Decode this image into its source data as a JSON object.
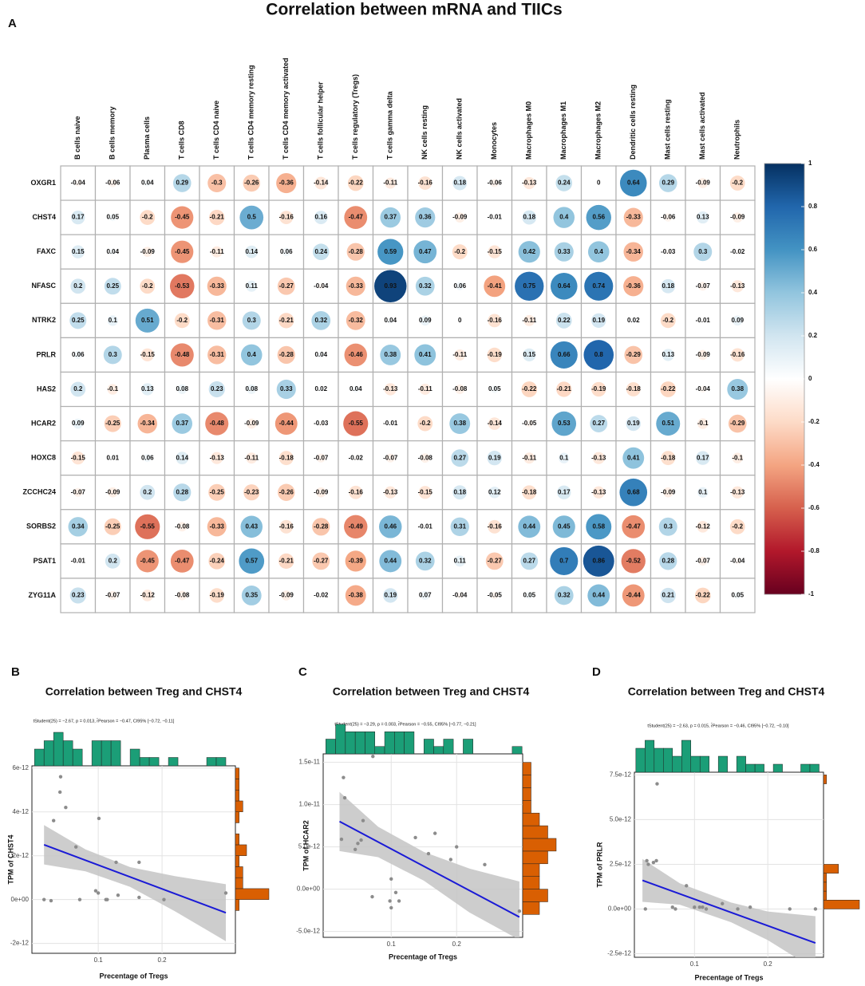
{
  "title": "Correlation between mRNA and TIICs",
  "chart_data": [
    {
      "type": "corrplot",
      "panel_label": "A",
      "rows": [
        "OXGR1",
        "CHST4",
        "FAXC",
        "NFASC",
        "NTRK2",
        "PRLR",
        "HAS2",
        "HCAR2",
        "HOXC8",
        "ZCCHC24",
        "SORBS2",
        "PSAT1",
        "ZYG11A"
      ],
      "columns": [
        "B cells naive",
        "B cells memory",
        "Plasma cells",
        "T cells CD8",
        "T cells CD4 naive",
        "T cells CD4 memory resting",
        "T cells CD4 memory activated",
        "T cells follicular helper",
        "T cells regulatory (Tregs)",
        "T cells gamma delta",
        "NK cells resting",
        "NK cells activated",
        "Monocytes",
        "Macrophages M0",
        "Macrophages M1",
        "Macrophages M2",
        "Dendritic cells resting",
        "Mast cells resting",
        "Mast cells activated",
        "Neutrophils"
      ],
      "values": [
        [
          -0.04,
          -0.06,
          0.04,
          0.29,
          -0.3,
          -0.26,
          -0.36,
          -0.14,
          -0.22,
          -0.11,
          -0.16,
          0.18,
          -0.06,
          -0.13,
          0.24,
          0,
          0.64,
          0.29,
          -0.09,
          -0.2
        ],
        [
          0.17,
          0.05,
          -0.2,
          -0.45,
          -0.21,
          0.5,
          -0.16,
          0.16,
          -0.47,
          0.37,
          0.36,
          -0.09,
          -0.01,
          0.18,
          0.4,
          0.56,
          -0.33,
          -0.06,
          0.13,
          -0.09
        ],
        [
          0.15,
          0.04,
          -0.09,
          -0.45,
          -0.11,
          0.14,
          0.06,
          0.24,
          -0.28,
          0.59,
          0.47,
          -0.2,
          -0.15,
          0.42,
          0.33,
          0.4,
          -0.34,
          -0.03,
          0.3,
          -0.02
        ],
        [
          0.2,
          0.25,
          -0.2,
          -0.53,
          -0.33,
          0.11,
          -0.27,
          -0.04,
          -0.33,
          0.93,
          0.32,
          0.06,
          -0.41,
          0.75,
          0.64,
          0.74,
          -0.36,
          0.18,
          -0.07,
          -0.13
        ],
        [
          0.25,
          0.1,
          0.51,
          -0.2,
          -0.31,
          0.3,
          -0.21,
          0.32,
          -0.32,
          0.04,
          0.09,
          0,
          -0.16,
          -0.11,
          0.22,
          0.19,
          0.02,
          -0.2,
          -0.01,
          0.09
        ],
        [
          0.06,
          0.3,
          -0.15,
          -0.48,
          -0.31,
          0.4,
          -0.28,
          0.04,
          -0.46,
          0.38,
          0.41,
          -0.11,
          -0.19,
          0.15,
          0.66,
          0.8,
          -0.29,
          0.13,
          -0.09,
          -0.16
        ],
        [
          0.2,
          -0.1,
          0.13,
          0.08,
          0.23,
          0.08,
          0.33,
          0.02,
          0.04,
          -0.13,
          -0.11,
          -0.08,
          0.05,
          -0.22,
          -0.21,
          -0.19,
          -0.18,
          -0.22,
          -0.04,
          0.38
        ],
        [
          0.09,
          -0.25,
          -0.34,
          0.37,
          -0.48,
          -0.09,
          -0.44,
          -0.03,
          -0.55,
          -0.01,
          -0.2,
          0.38,
          -0.14,
          -0.05,
          0.53,
          0.27,
          0.19,
          0.51,
          -0.1,
          -0.29
        ],
        [
          -0.15,
          0.01,
          0.06,
          0.14,
          -0.13,
          -0.11,
          -0.18,
          -0.07,
          -0.02,
          -0.07,
          -0.08,
          0.27,
          0.19,
          -0.11,
          0.1,
          -0.13,
          0.41,
          -0.18,
          0.17,
          -0.1
        ],
        [
          -0.07,
          -0.09,
          0.2,
          0.28,
          -0.25,
          -0.23,
          -0.26,
          -0.09,
          -0.16,
          -0.13,
          -0.15,
          0.18,
          0.12,
          -0.18,
          0.17,
          -0.13,
          0.68,
          -0.09,
          0.1,
          -0.13
        ],
        [
          0.34,
          -0.25,
          -0.55,
          -0.08,
          -0.33,
          0.43,
          -0.16,
          -0.28,
          -0.49,
          0.46,
          -0.01,
          0.31,
          -0.16,
          0.44,
          0.45,
          0.58,
          -0.47,
          0.3,
          -0.12,
          -0.2
        ],
        [
          -0.01,
          0.2,
          -0.45,
          -0.47,
          -0.24,
          0.57,
          -0.21,
          -0.27,
          -0.39,
          0.44,
          0.32,
          0.11,
          -0.27,
          0.27,
          0.7,
          0.86,
          -0.52,
          0.28,
          -0.07,
          -0.04
        ],
        [
          0.23,
          -0.07,
          -0.12,
          -0.08,
          -0.19,
          0.35,
          -0.09,
          -0.02,
          -0.38,
          0.19,
          0.07,
          -0.04,
          -0.05,
          0.05,
          0.32,
          0.44,
          -0.44,
          0.21,
          -0.22,
          0.05
        ]
      ],
      "colors": [
        "#67001F",
        "#B2182B",
        "#D6604D",
        "#F4A582",
        "#FDDBC7",
        "#FFFFFF",
        "#D1E5F0",
        "#92C5DE",
        "#4393C3",
        "#2166AC",
        "#053061"
      ],
      "clim": [
        -1,
        1
      ],
      "colorbar_ticks": [
        1,
        0.8,
        0.6,
        0.4,
        0.2,
        0,
        -0.2,
        -0.4,
        -0.6,
        -0.8,
        -1
      ]
    },
    {
      "type": "scatter",
      "panel_label": "B",
      "title": "Correlation between Treg and CHST4",
      "subtitle": "tStudent(25) = −2.67, p = 0.013, r̂Pearson = −0.47, CI95% [−0.72, −0.11]",
      "x_label": "Precentage of Tregs",
      "y_label": "TPM of CHST4",
      "xlim": [
        -0.004,
        0.315
      ],
      "ylim": [
        -2.45e-12,
        6.1e-12
      ],
      "xticks": [
        0.1,
        0.2
      ],
      "yticks": [
        {
          "value": -2e-12,
          "label": "-2e-12"
        },
        {
          "value": 0,
          "label": "0e+00"
        },
        {
          "value": 2e-12,
          "label": "2e-12"
        },
        {
          "value": 4e-12,
          "label": "4e-12"
        },
        {
          "value": 6e-12,
          "label": "6e-12"
        }
      ],
      "x": [
        0.041,
        0.04,
        0.049,
        0.03,
        0.101,
        0.065,
        0.015,
        0.026,
        0.071,
        0.096,
        0.1,
        0.112,
        0.114,
        0.131,
        0.128,
        0.164,
        0.164,
        0.203,
        0.3
      ],
      "y": [
        5.6e-12,
        4.9e-12,
        4.2e-12,
        3.6e-12,
        3.7e-12,
        2.4e-12,
        0,
        -5e-14,
        0,
        4e-13,
        3e-13,
        0,
        0,
        2e-13,
        1.7e-12,
        1.7e-12,
        1e-13,
        0,
        3e-13
      ],
      "point_color": "#8c8c8c",
      "fit": {
        "x": [
          0.015,
          0.3
        ],
        "y": [
          2.5e-12,
          -6e-13
        ],
        "color": "#1a1ad6"
      },
      "band": {
        "x": [
          0.015,
          0.08,
          0.15,
          0.22,
          0.3
        ],
        "lower": [
          1.6e-12,
          1.29e-12,
          5.8e-13,
          -5.3e-13,
          -1.9e-12
        ],
        "upper": [
          3.4e-12,
          2.29e-12,
          1.48e-12,
          1.07e-12,
          7e-13
        ],
        "color": "#c4c4c4"
      },
      "x_hist": {
        "bins": [
          0,
          0.015,
          0.03,
          0.045,
          0.06,
          0.075,
          0.09,
          0.105,
          0.12,
          0.135,
          0.15,
          0.165,
          0.18,
          0.195,
          0.21,
          0.225,
          0.24,
          0.255,
          0.27,
          0.285,
          0.3
        ],
        "counts": [
          2,
          3,
          4,
          3,
          2,
          0,
          3,
          3,
          3,
          0,
          2,
          1,
          1,
          0,
          1,
          0,
          0,
          0,
          1,
          1
        ],
        "color": "#1b9e77"
      },
      "y_hist": {
        "bins": [
          -5e-13,
          0,
          5e-13,
          1e-12,
          1.5e-12,
          2e-12,
          2.5e-12,
          3e-12,
          3.5e-12,
          4e-12,
          4.5e-12,
          5e-12,
          5.5e-12,
          6e-12
        ],
        "counts": [
          1,
          9,
          2,
          2,
          1,
          3,
          1,
          0,
          1,
          2,
          1,
          1,
          1
        ],
        "color": "#d95f02"
      }
    },
    {
      "type": "scatter",
      "panel_label": "C",
      "title": "Correlation between Treg and CHST4",
      "subtitle": "tStudent(25) = −3.29, p = 0.003, r̂Pearson = −0.55, CI95% [−0.77, −0.21]",
      "x_label": "Precentage of Tregs",
      "y_label": "TPM of HCAR2",
      "xlim": [
        -0.004,
        0.301
      ],
      "ylim": [
        -5.7e-12,
        1.6e-11
      ],
      "xticks": [
        0.1,
        0.2
      ],
      "yticks": [
        {
          "value": -5e-12,
          "label": "-5.0e-12"
        },
        {
          "value": 0,
          "label": "0.0e+00"
        },
        {
          "value": 5e-12,
          "label": "5.0e-12"
        },
        {
          "value": 1e-11,
          "label": "1.0e-11"
        },
        {
          "value": 1.5e-11,
          "label": "1.5e-11"
        }
      ],
      "x": [
        0.027,
        0.029,
        0.057,
        0.072,
        0.024,
        0.045,
        0.049,
        0.054,
        0.071,
        0.098,
        0.1,
        0.107,
        0.112,
        0.137,
        0.157,
        0.167,
        0.191,
        0.2,
        0.243,
        0.296,
        0.1
      ],
      "y": [
        1.32e-11,
        1.08e-11,
        8.1e-12,
        1.57e-11,
        5.9e-12,
        4.7e-12,
        5.4e-12,
        5.8e-12,
        -9e-13,
        -1.4e-12,
        -2.2e-12,
        -4e-13,
        -1.4e-12,
        6.1e-12,
        4.2e-12,
        6.6e-12,
        3.5e-12,
        5e-12,
        2.9e-12,
        -2.6e-12,
        1.2e-12
      ],
      "point_color": "#8c8c8c",
      "fit": {
        "x": [
          0.021,
          0.296
        ],
        "y": [
          8e-12,
          -3.3e-12
        ],
        "color": "#1a1ad6"
      },
      "band": {
        "x": [
          0.021,
          0.08,
          0.15,
          0.22,
          0.296
        ],
        "lower": [
          4.5e-12,
          3.78e-12,
          1e-12,
          -2.78e-12,
          -6e-12
        ],
        "upper": [
          1.15e-11,
          7.38e-12,
          4.4e-12,
          2.42e-12,
          9e-13
        ],
        "color": "#c4c4c4"
      },
      "x_hist": {
        "bins": [
          0,
          0.015,
          0.03,
          0.045,
          0.06,
          0.075,
          0.09,
          0.105,
          0.12,
          0.135,
          0.15,
          0.165,
          0.18,
          0.195,
          0.21,
          0.225,
          0.24,
          0.255,
          0.27,
          0.285,
          0.3
        ],
        "counts": [
          2,
          4,
          3,
          3,
          3,
          1,
          3,
          3,
          3,
          0,
          2,
          1,
          2,
          0,
          2,
          0,
          0,
          0,
          0,
          1
        ],
        "color": "#1b9e77"
      },
      "y_hist": {
        "bins": [
          -3e-12,
          -1.5e-12,
          0,
          1.5e-12,
          3e-12,
          4.5e-12,
          6e-12,
          7.5e-12,
          9e-12,
          1.05e-11,
          1.2e-11,
          1.35e-11,
          1.5e-11
        ],
        "counts": [
          2,
          3,
          2,
          2,
          3,
          4,
          3,
          2,
          1,
          1,
          1,
          1
        ],
        "color": "#d95f02"
      }
    },
    {
      "type": "scatter",
      "panel_label": "D",
      "title": "Correlation between Treg and CHST4",
      "subtitle": "tStudent(25) = −2.63, p = 0.015, r̂Pearson = −0.46, CI95% [−0.72, −0.10]",
      "x_label": "Precentage of Tregs",
      "y_label": "TPM of PRLR",
      "xlim": [
        0.018,
        0.276
      ],
      "ylim": [
        -2.7e-12,
        7.65e-12
      ],
      "xticks": [
        0.1,
        0.2
      ],
      "yticks": [
        {
          "value": -2.5e-12,
          "label": "-2.5e-12"
        },
        {
          "value": 0,
          "label": "0.0e+00"
        },
        {
          "value": 2.5e-12,
          "label": "2.5e-12"
        },
        {
          "value": 5e-12,
          "label": "5.0e-12"
        },
        {
          "value": 7.5e-12,
          "label": "7.5e-12"
        }
      ],
      "x": [
        0.049,
        0.035,
        0.037,
        0.044,
        0.048,
        0.033,
        0.07,
        0.074,
        0.089,
        0.1,
        0.107,
        0.111,
        0.116,
        0.138,
        0.159,
        0.176,
        0.23,
        0.265
      ],
      "y": [
        7e-12,
        2.7e-12,
        2.5e-12,
        2.6e-12,
        2.7e-12,
        0,
        1e-13,
        0,
        1.3e-12,
        1e-13,
        1e-13,
        1e-13,
        0,
        3e-13,
        0,
        1e-13,
        0,
        0
      ],
      "point_color": "#8c8c8c",
      "fit": {
        "x": [
          0.029,
          0.265
        ],
        "y": [
          1.6e-12,
          -1.9e-12
        ],
        "color": "#1a1ad6"
      },
      "band": {
        "x": [
          0.029,
          0.08,
          0.15,
          0.2,
          0.265
        ],
        "lower": [
          4e-13,
          2.4e-13,
          -7.4e-13,
          -1.74e-12,
          -3.4e-12
        ],
        "upper": [
          2.8e-12,
          1.44e-12,
          3.6e-13,
          -1.4e-13,
          -4e-13
        ],
        "color": "#c4c4c4"
      },
      "x_hist": {
        "bins": [
          0.02,
          0.0325,
          0.045,
          0.0575,
          0.07,
          0.0825,
          0.095,
          0.1075,
          0.12,
          0.1325,
          0.145,
          0.1575,
          0.17,
          0.1825,
          0.195,
          0.2075,
          0.22,
          0.2325,
          0.245,
          0.2575,
          0.27
        ],
        "counts": [
          3,
          4,
          3,
          3,
          2,
          4,
          2,
          2,
          0,
          2,
          0,
          2,
          1,
          1,
          0,
          1,
          0,
          0,
          1,
          1
        ],
        "color": "#1b9e77"
      },
      "y_hist": {
        "bins": [
          -5e-13,
          0,
          5e-13,
          1e-12,
          1.5e-12,
          2e-12,
          2.5e-12,
          3e-12,
          3.5e-12,
          4e-12,
          4.5e-12,
          5e-12,
          5.5e-12,
          6e-12,
          6.5e-12,
          7e-12,
          7.5e-12
        ],
        "counts": [
          0,
          12,
          1,
          1,
          1,
          5,
          0,
          0,
          0,
          0,
          0,
          0,
          0,
          0,
          0,
          1
        ],
        "color": "#d95f02"
      }
    }
  ]
}
